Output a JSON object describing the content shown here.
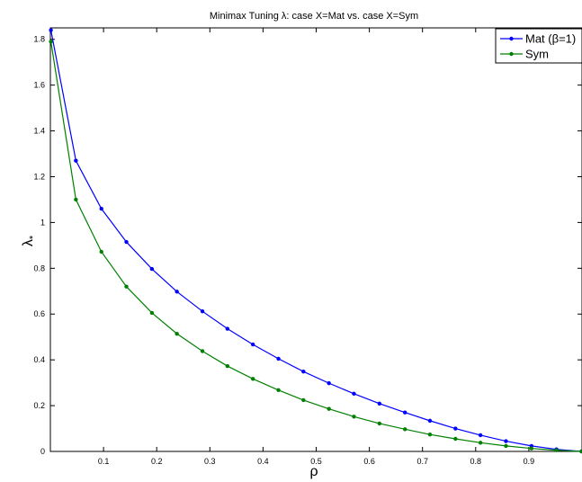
{
  "chart_data": {
    "type": "line",
    "title": "Minimax Tuning λ: case X=Mat vs. case X=Sym",
    "xlabel": "ρ",
    "ylabel": "λ*",
    "xlim": [
      0,
      1
    ],
    "ylim": [
      0,
      1.85
    ],
    "x_ticks": [
      0.1,
      0.2,
      0.3,
      0.4,
      0.5,
      0.6,
      0.7,
      0.8,
      0.9
    ],
    "y_ticks": [
      0,
      0.2,
      0.4,
      0.6,
      0.8,
      1,
      1.2,
      1.4,
      1.6,
      1.8
    ],
    "x_tick_labels": [
      "0.1",
      "0.2",
      "0.3",
      "0.4",
      "0.5",
      "0.6",
      "0.7",
      "0.8",
      "0.9"
    ],
    "y_tick_labels": [
      "0",
      "0.2",
      "0.4",
      "0.6",
      "0.8",
      "1",
      "1.2",
      "1.4",
      "1.6",
      "1.8"
    ],
    "grid": false,
    "legend_position": "top-right",
    "x": [
      0.001,
      0.048,
      0.096,
      0.143,
      0.191,
      0.238,
      0.286,
      0.333,
      0.381,
      0.429,
      0.476,
      0.524,
      0.571,
      0.619,
      0.667,
      0.714,
      0.762,
      0.809,
      0.857,
      0.905,
      0.952,
      0.999
    ],
    "series": [
      {
        "name": "Mat (β=1)",
        "color": "#0000ff",
        "values": [
          1.84,
          1.27,
          1.06,
          0.915,
          0.797,
          0.698,
          0.612,
          0.536,
          0.467,
          0.405,
          0.349,
          0.298,
          0.252,
          0.209,
          0.17,
          0.134,
          0.1,
          0.071,
          0.045,
          0.024,
          0.009,
          0.0
        ]
      },
      {
        "name": "Sym",
        "color": "#008000",
        "values": [
          1.79,
          1.1,
          0.872,
          0.72,
          0.605,
          0.514,
          0.438,
          0.373,
          0.317,
          0.268,
          0.224,
          0.186,
          0.152,
          0.122,
          0.097,
          0.074,
          0.055,
          0.038,
          0.024,
          0.013,
          0.005,
          0.0
        ]
      }
    ]
  }
}
